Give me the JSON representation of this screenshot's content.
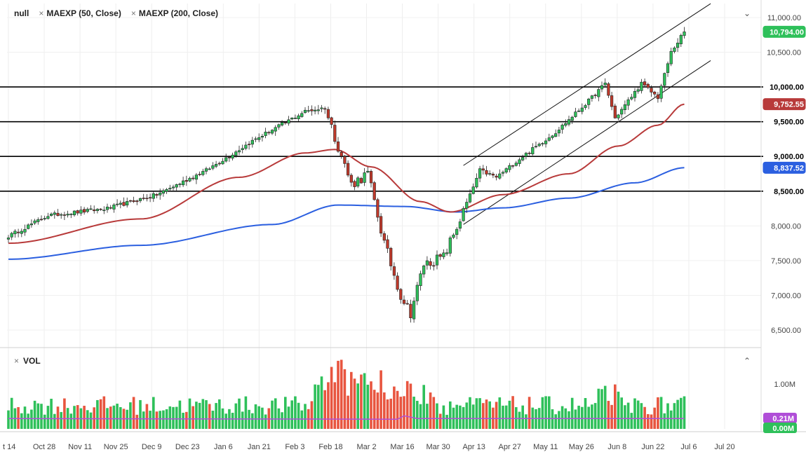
{
  "legend": {
    "main": "null",
    "study1": "MAEXP (50, Close)",
    "study2": "MAEXP (200, Close)",
    "close_glyph": "×",
    "collapse_glyph": "⌄"
  },
  "volume_panel": {
    "label": "VOL",
    "close_glyph": "×",
    "collapse_glyph": "⌃",
    "tick_label": "1.00M",
    "tags": [
      {
        "text": "0.21M",
        "color": "#b04ed8"
      },
      {
        "text": "0.00M",
        "color": "#2ec05a"
      }
    ]
  },
  "y_axis": {
    "ticks": [
      "11,000.00",
      "10,500.00",
      "10,000.00",
      "9,500.00",
      "9,000.00",
      "8,500.00",
      "8,000.00",
      "7,500.00",
      "7,000.00",
      "6,500.00"
    ],
    "tick_values": [
      11000,
      10500,
      10000,
      9500,
      9000,
      8500,
      8000,
      7500,
      7000,
      6500
    ]
  },
  "x_axis": {
    "ticks": [
      "t 14",
      "Oct 28",
      "Nov 11",
      "Nov 25",
      "Dec 9",
      "Dec 23",
      "Jan 6",
      "Jan 21",
      "Feb 3",
      "Feb 18",
      "Mar 2",
      "Mar 16",
      "Mar 30",
      "Apr 13",
      "Apr 27",
      "May 11",
      "May 26",
      "Jun 8",
      "Jun 22",
      "Jul 6",
      "Jul 20"
    ]
  },
  "price_tags": [
    {
      "text": "10,794.00",
      "value": 10794,
      "bg": "#2ec05a",
      "fg": "#ffffff"
    },
    {
      "text": "10,000.00",
      "value": 10000,
      "bg": "#ffffff",
      "fg": "#000000"
    },
    {
      "text": "9,752.55",
      "value": 9752.55,
      "bg": "#b83a3a",
      "fg": "#ffffff"
    },
    {
      "text": "9,500.00",
      "value": 9500,
      "bg": "#ffffff",
      "fg": "#000000"
    },
    {
      "text": "9,000.00",
      "value": 9000,
      "bg": "#ffffff",
      "fg": "#000000"
    },
    {
      "text": "8,837.52",
      "value": 8837.52,
      "bg": "#2b5fe0",
      "fg": "#ffffff"
    },
    {
      "text": "8,500.00",
      "value": 8500,
      "bg": "#ffffff",
      "fg": "#000000"
    }
  ],
  "chart_data": {
    "type": "candlestick",
    "title": "",
    "horizontal_levels": [
      10000,
      9500,
      9000,
      8500
    ],
    "ylim": [
      6300,
      11100
    ],
    "colors": {
      "up": "#2ec05a",
      "down": "#e8553f",
      "ma50": "#b83a3a",
      "ma200": "#2b5fe0",
      "vol_ma": "#b04ed8"
    },
    "anchors": [
      {
        "i": 0,
        "c": 7850
      },
      {
        "i": 12,
        "c": 8150
      },
      {
        "i": 30,
        "c": 8250
      },
      {
        "i": 45,
        "c": 8450
      },
      {
        "i": 60,
        "c": 8800
      },
      {
        "i": 75,
        "c": 9250
      },
      {
        "i": 90,
        "c": 9650
      },
      {
        "i": 96,
        "c": 9700
      },
      {
        "i": 100,
        "c": 9150
      },
      {
        "i": 104,
        "c": 8600
      },
      {
        "i": 109,
        "c": 8750
      },
      {
        "i": 114,
        "c": 7750
      },
      {
        "i": 119,
        "c": 7000
      },
      {
        "i": 122,
        "c": 6750
      },
      {
        "i": 126,
        "c": 7450
      },
      {
        "i": 132,
        "c": 7550
      },
      {
        "i": 138,
        "c": 8200
      },
      {
        "i": 143,
        "c": 8800
      },
      {
        "i": 148,
        "c": 8700
      },
      {
        "i": 156,
        "c": 9000
      },
      {
        "i": 166,
        "c": 9350
      },
      {
        "i": 176,
        "c": 9800
      },
      {
        "i": 181,
        "c": 10050
      },
      {
        "i": 184,
        "c": 9550
      },
      {
        "i": 192,
        "c": 10050
      },
      {
        "i": 197,
        "c": 9850
      },
      {
        "i": 201,
        "c": 10500
      },
      {
        "i": 205,
        "c": 10794
      }
    ],
    "moving_averages": {
      "ma50": [
        {
          "i": 0,
          "v": 7750
        },
        {
          "i": 40,
          "v": 8100
        },
        {
          "i": 70,
          "v": 8700
        },
        {
          "i": 90,
          "v": 9050
        },
        {
          "i": 99,
          "v": 9100
        },
        {
          "i": 110,
          "v": 8850
        },
        {
          "i": 125,
          "v": 8350
        },
        {
          "i": 134,
          "v": 8200
        },
        {
          "i": 150,
          "v": 8450
        },
        {
          "i": 170,
          "v": 8750
        },
        {
          "i": 185,
          "v": 9150
        },
        {
          "i": 197,
          "v": 9450
        },
        {
          "i": 205,
          "v": 9752.55
        }
      ],
      "ma200": [
        {
          "i": 0,
          "v": 7520
        },
        {
          "i": 40,
          "v": 7720
        },
        {
          "i": 80,
          "v": 8020
        },
        {
          "i": 100,
          "v": 8300
        },
        {
          "i": 120,
          "v": 8280
        },
        {
          "i": 136,
          "v": 8200
        },
        {
          "i": 150,
          "v": 8260
        },
        {
          "i": 170,
          "v": 8400
        },
        {
          "i": 190,
          "v": 8620
        },
        {
          "i": 205,
          "v": 8837.52
        }
      ]
    },
    "trend_channel": [
      {
        "x1": 138,
        "y1": 8870,
        "x2": 213,
        "y2": 11200
      },
      {
        "x1": 138,
        "y1": 8020,
        "x2": 213,
        "y2": 10380
      }
    ],
    "volume_max": 1.6,
    "volume_ma_level": 0.21
  }
}
